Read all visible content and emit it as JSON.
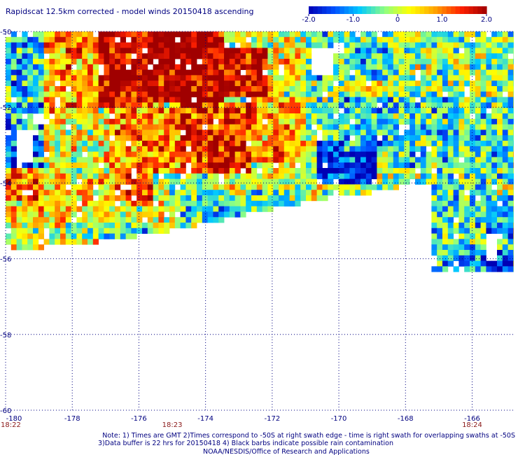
{
  "header": {
    "title": "Rapidscat 12.5km corrected - model winds 20150418 ascending"
  },
  "colorbar": {
    "tick_labels": [
      "-2.0",
      "-1.0",
      "0",
      "1.0",
      "2.0"
    ],
    "tick_values": [
      -2.0,
      -1.0,
      0,
      1.0,
      2.0
    ],
    "range": [
      -2.0,
      2.0
    ],
    "colors": [
      "#0000b4",
      "#0050ff",
      "#00c8ff",
      "#90ff80",
      "#ffff00",
      "#ffa000",
      "#ff2000",
      "#a00000"
    ]
  },
  "footer": {
    "line1": "Note: 1) Times are GMT 2)Times correspond to -50S at right swath edge - time is right swath for overlapping swaths at -50S",
    "line2": "3)Data buffer is 22 hrs for 20150418 4) Black barbs indicate possible rain contamination",
    "line3": "NOAA/NESDIS/Office of Research and Applications"
  },
  "chart_data": {
    "type": "heatmap",
    "title": "Rapidscat 12.5km corrected - model winds 20150418 ascending",
    "xlim": [
      -180,
      -164.75
    ],
    "ylim": [
      -60,
      -50
    ],
    "x_ticks": [
      -180,
      -178,
      -176,
      -174,
      -172,
      -170,
      -168,
      -166
    ],
    "x_tick_labels": [
      "-180",
      "-178",
      "-176",
      "-174",
      "-172",
      "-170",
      "-168",
      "-166"
    ],
    "y_ticks": [
      -50,
      -52,
      -54,
      -56,
      -58,
      -60
    ],
    "y_tick_labels": [
      "-50",
      "-52",
      "-54",
      "-56",
      "-58",
      "-60"
    ],
    "grid": true,
    "value_range": [
      -2.0,
      2.0
    ],
    "time_labels": [
      {
        "lon": -180,
        "text": "18:22"
      },
      {
        "lon": -175,
        "text": "18:23"
      },
      {
        "lon": -166,
        "text": "18:24"
      }
    ],
    "regions": [
      {
        "lon": [
          -180,
          -178.8
        ],
        "lat": [
          -52.5,
          -50
        ],
        "value": -0.9
      },
      {
        "lon": [
          -178.8,
          -177.2
        ],
        "lat": [
          -52.2,
          -50
        ],
        "value": 0.9
      },
      {
        "lon": [
          -177.2,
          -173.4
        ],
        "lat": [
          -51.3,
          -50
        ],
        "value": 2.0
      },
      {
        "lon": [
          -177.2,
          -175.6
        ],
        "lat": [
          -52.0,
          -51.3
        ],
        "value": 1.8
      },
      {
        "lon": [
          -175.6,
          -173.4
        ],
        "lat": [
          -51.9,
          -51.3
        ],
        "value": 1.9
      },
      {
        "lon": [
          -173.4,
          -172.2
        ],
        "lat": [
          -51.8,
          -50.5
        ],
        "value": 1.8
      },
      {
        "lon": [
          -172.2,
          -171.0
        ],
        "lat": [
          -51.6,
          -50.5
        ],
        "value": 0.3
      },
      {
        "lon": [
          -171.0,
          -168.6
        ],
        "lat": [
          -51.3,
          -50
        ],
        "value": -0.6
      },
      {
        "lon": [
          -168.6,
          -164.8
        ],
        "lat": [
          -51.8,
          -50
        ],
        "value": -0.2
      },
      {
        "lon": [
          -180,
          -178.8
        ],
        "lat": [
          -53.6,
          -52.5
        ],
        "value": -1.2
      },
      {
        "lon": [
          -178.8,
          -176.9
        ],
        "lat": [
          -53.8,
          -52.2
        ],
        "value": 0.2
      },
      {
        "lon": [
          -176.9,
          -174.8
        ],
        "lat": [
          -53.8,
          -52.0
        ],
        "value": 0.9
      },
      {
        "lon": [
          -174.8,
          -172.6
        ],
        "lat": [
          -53.8,
          -51.9
        ],
        "value": 1.5
      },
      {
        "lon": [
          -172.6,
          -171.0
        ],
        "lat": [
          -53.4,
          -51.8
        ],
        "value": 0.8
      },
      {
        "lon": [
          -171.0,
          -169.8
        ],
        "lat": [
          -52.9,
          -51.3
        ],
        "value": -0.3
      },
      {
        "lon": [
          -169.8,
          -168.4
        ],
        "lat": [
          -53.2,
          -51.8
        ],
        "value": -0.9
      },
      {
        "lon": [
          -168.4,
          -164.8
        ],
        "lat": [
          -53.6,
          -51.8
        ],
        "value": -0.6
      },
      {
        "lon": [
          -170.6,
          -168.9
        ],
        "lat": [
          -54.1,
          -52.7
        ],
        "value": -1.7
      },
      {
        "lon": [
          -180,
          -179.0
        ],
        "lat": [
          -54.4,
          -53.6
        ],
        "value": 1.2
      },
      {
        "lon": [
          -176.4,
          -175.5
        ],
        "lat": [
          -54.6,
          -53.6
        ],
        "value": 1.6
      },
      {
        "lon": [
          -179.0,
          -176.4
        ],
        "lat": [
          -54.5,
          -53.8
        ],
        "value": 0.6
      },
      {
        "lon": [
          -175.5,
          -173.8
        ],
        "lat": [
          -54.4,
          -53.8
        ],
        "value": -0.3
      },
      {
        "lon": [
          -173.8,
          -170.6
        ],
        "lat": [
          -54.2,
          -53.5
        ],
        "value": 0.1
      },
      {
        "lon": [
          -168.9,
          -167.6
        ],
        "lat": [
          -54.3,
          -53.4
        ],
        "value": -0.2
      },
      {
        "lon": [
          -167.6,
          -164.8
        ],
        "lat": [
          -54.1,
          -53.6
        ],
        "value": -0.5
      },
      {
        "lon": [
          -180,
          -177.2
        ],
        "lat": [
          -55.0,
          -54.4
        ],
        "value": 0.4
      },
      {
        "lon": [
          -177.2,
          -174.8
        ],
        "lat": [
          -55.0,
          -54.5
        ],
        "value": 0.2
      },
      {
        "lon": [
          -174.8,
          -172.6
        ],
        "lat": [
          -55.1,
          -54.4
        ],
        "value": -0.9
      },
      {
        "lon": [
          -172.6,
          -171.0
        ],
        "lat": [
          -55.0,
          -54.2
        ],
        "value": -0.4
      },
      {
        "lon": [
          -171.0,
          -168.4
        ],
        "lat": [
          -54.4,
          -54.1
        ],
        "value": -0.1
      },
      {
        "lon": [
          -180,
          -178.2
        ],
        "lat": [
          -55.8,
          -55.0
        ],
        "value": 0.2
      },
      {
        "lon": [
          -178.2,
          -175.8
        ],
        "lat": [
          -55.5,
          -55.0
        ],
        "value": -0.5
      },
      {
        "lon": [
          -175.8,
          -174.4
        ],
        "lat": [
          -55.3,
          -55.0
        ],
        "value": 0.1
      },
      {
        "lon": [
          -167.2,
          -165.5
        ],
        "lat": [
          -55.6,
          -54.0
        ],
        "value": -0.6
      },
      {
        "lon": [
          -165.5,
          -164.8
        ],
        "lat": [
          -55.6,
          -54.3
        ],
        "value": -0.9
      },
      {
        "lon": [
          -167.2,
          -165.5
        ],
        "lat": [
          -56.4,
          -55.6
        ],
        "value": -0.8
      },
      {
        "lon": [
          -165.5,
          -164.8
        ],
        "lat": [
          -56.4,
          -55.8
        ],
        "value": -1.8
      }
    ],
    "missing_rects": [
      {
        "lon": [
          -179.7,
          -179.1
        ],
        "lat": [
          -53.5,
          -52.6
        ]
      },
      {
        "lon": [
          -179.2,
          -178.9
        ],
        "lat": [
          -52.5,
          -52.2
        ]
      },
      {
        "lon": [
          -170.9,
          -170.2
        ],
        "lat": [
          -51.1,
          -50.5
        ]
      },
      {
        "lon": [
          -170.2,
          -169.9
        ],
        "lat": [
          -50.6,
          -50.3
        ]
      },
      {
        "lon": [
          -165.6,
          -165.2
        ],
        "lat": [
          -56.0,
          -55.4
        ]
      }
    ]
  }
}
